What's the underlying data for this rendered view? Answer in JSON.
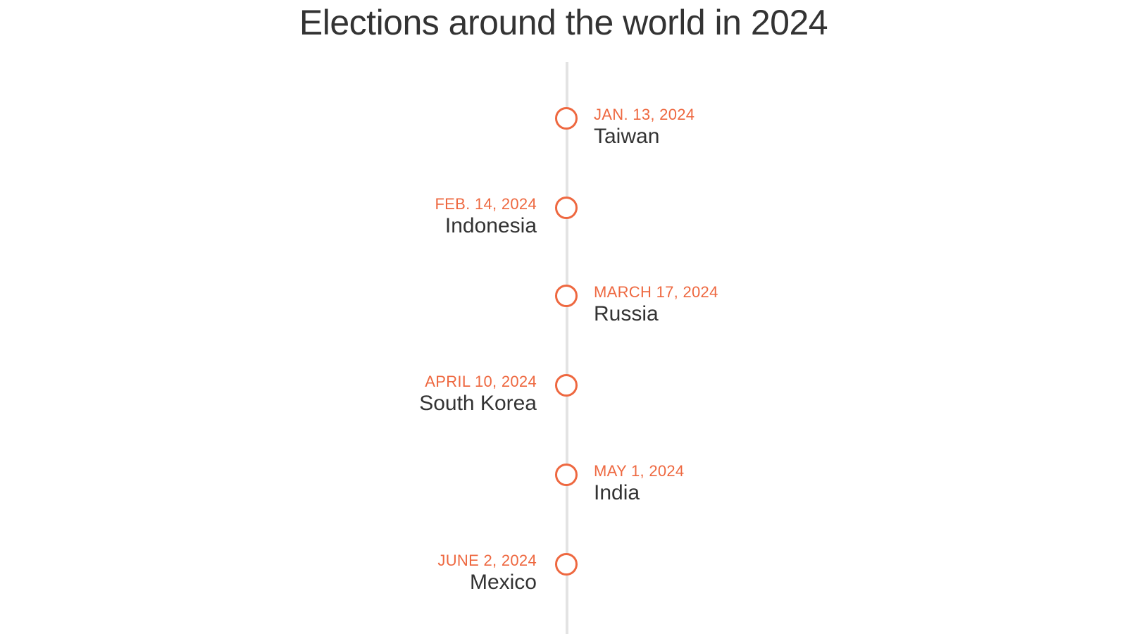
{
  "title": "Elections around the world in 2024",
  "colors": {
    "accent": "#ee6840",
    "text": "#333333",
    "axis": "#e3e3e3"
  },
  "events": [
    {
      "date": "JAN. 13, 2024",
      "country": "Taiwan",
      "side": "right"
    },
    {
      "date": "FEB. 14, 2024",
      "country": "Indonesia",
      "side": "left"
    },
    {
      "date": "MARCH 17, 2024",
      "country": "Russia",
      "side": "right"
    },
    {
      "date": "APRIL 10, 2024",
      "country": "South Korea",
      "side": "left"
    },
    {
      "date": "MAY 1, 2024",
      "country": "India",
      "side": "right"
    },
    {
      "date": "JUNE 2, 2024",
      "country": "Mexico",
      "side": "left"
    }
  ]
}
